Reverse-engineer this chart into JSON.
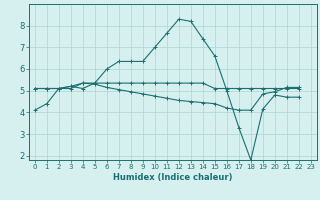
{
  "xlabel": "Humidex (Indice chaleur)",
  "bg_color": "#d6f0f0",
  "grid_color": "#aad4d4",
  "line_color": "#1a7070",
  "xlim": [
    -0.5,
    23.5
  ],
  "ylim": [
    1.8,
    9.0
  ],
  "yticks": [
    2,
    3,
    4,
    5,
    6,
    7,
    8
  ],
  "xticks": [
    0,
    1,
    2,
    3,
    4,
    5,
    6,
    7,
    8,
    9,
    10,
    11,
    12,
    13,
    14,
    15,
    16,
    17,
    18,
    19,
    20,
    21,
    22,
    23
  ],
  "series1_x": [
    0,
    1,
    2,
    3,
    4,
    5,
    6,
    7,
    8,
    9,
    10,
    11,
    12,
    13,
    14,
    15,
    16,
    17,
    18,
    19,
    20,
    21,
    22
  ],
  "series1_y": [
    4.1,
    4.4,
    5.1,
    5.2,
    5.1,
    5.35,
    6.0,
    6.35,
    6.35,
    6.35,
    7.0,
    7.65,
    8.3,
    8.2,
    7.4,
    6.6,
    5.0,
    3.3,
    1.8,
    4.15,
    4.8,
    4.7,
    4.7
  ],
  "series2_x": [
    0,
    1,
    2,
    3,
    4,
    5,
    6,
    7,
    8,
    9,
    10,
    11,
    12,
    13,
    14,
    15,
    16,
    17,
    18,
    19,
    20,
    21,
    22
  ],
  "series2_y": [
    5.1,
    5.1,
    5.1,
    5.1,
    5.35,
    5.35,
    5.35,
    5.35,
    5.35,
    5.35,
    5.35,
    5.35,
    5.35,
    5.35,
    5.35,
    5.1,
    5.1,
    5.1,
    5.1,
    5.1,
    5.1,
    5.1,
    5.1
  ],
  "series3_x": [
    0,
    1,
    2,
    3,
    4,
    5,
    6,
    7,
    8,
    9,
    10,
    11,
    12,
    13,
    14,
    15,
    16,
    17,
    18,
    19,
    20,
    21,
    22
  ],
  "series3_y": [
    5.1,
    5.1,
    5.1,
    5.2,
    5.35,
    5.3,
    5.15,
    5.05,
    4.95,
    4.85,
    4.75,
    4.65,
    4.55,
    4.5,
    4.45,
    4.4,
    4.2,
    4.1,
    4.1,
    4.85,
    4.95,
    5.15,
    5.15
  ],
  "xlabel_fontsize": 6,
  "tick_fontsize_x": 5,
  "tick_fontsize_y": 6,
  "linewidth": 0.8,
  "markersize": 2.5
}
